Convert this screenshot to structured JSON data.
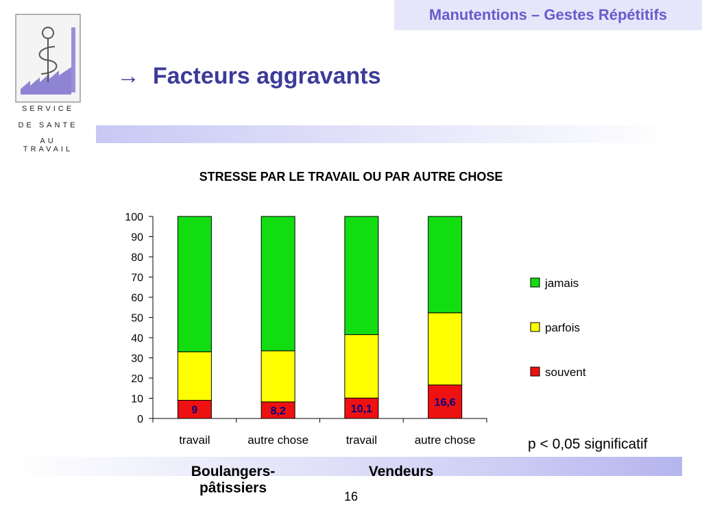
{
  "header": {
    "tag": "Manutentions – Gestes Répétitifs"
  },
  "slide": {
    "title": "Facteurs aggravants",
    "page_number": "16"
  },
  "logo": {
    "line1": "SERVICE",
    "line2": "DE SANTE",
    "line3": "AU TRAVAIL"
  },
  "note": "p < 0,05 significatif",
  "groups": [
    "Boulangers-pâtissiers",
    "Vendeurs"
  ],
  "chart_data": {
    "type": "bar",
    "stacked": true,
    "title": "STRESSE PAR LE TRAVAIL OU PAR AUTRE CHOSE",
    "categories": [
      "travail",
      "autre chose",
      "travail",
      "autre chose"
    ],
    "series": [
      {
        "name": "souvent",
        "values": [
          9,
          8.2,
          10.1,
          16.6
        ],
        "labels": [
          "9",
          "8,2",
          "10,1",
          "16,6"
        ],
        "color": "#ee1111"
      },
      {
        "name": "parfois",
        "values": [
          24,
          25.3,
          31.4,
          35.7
        ],
        "color": "#ffff00"
      },
      {
        "name": "jamais",
        "values": [
          67,
          66.5,
          58.5,
          47.7
        ],
        "color": "#11dd11"
      }
    ],
    "ylim": [
      0,
      100
    ],
    "yticks": [
      "0",
      "10",
      "20",
      "30",
      "40",
      "50",
      "60",
      "70",
      "80",
      "90",
      "100"
    ],
    "legend_order": [
      "jamais",
      "parfois",
      "souvent"
    ],
    "legend_position": "right",
    "grid": false
  }
}
